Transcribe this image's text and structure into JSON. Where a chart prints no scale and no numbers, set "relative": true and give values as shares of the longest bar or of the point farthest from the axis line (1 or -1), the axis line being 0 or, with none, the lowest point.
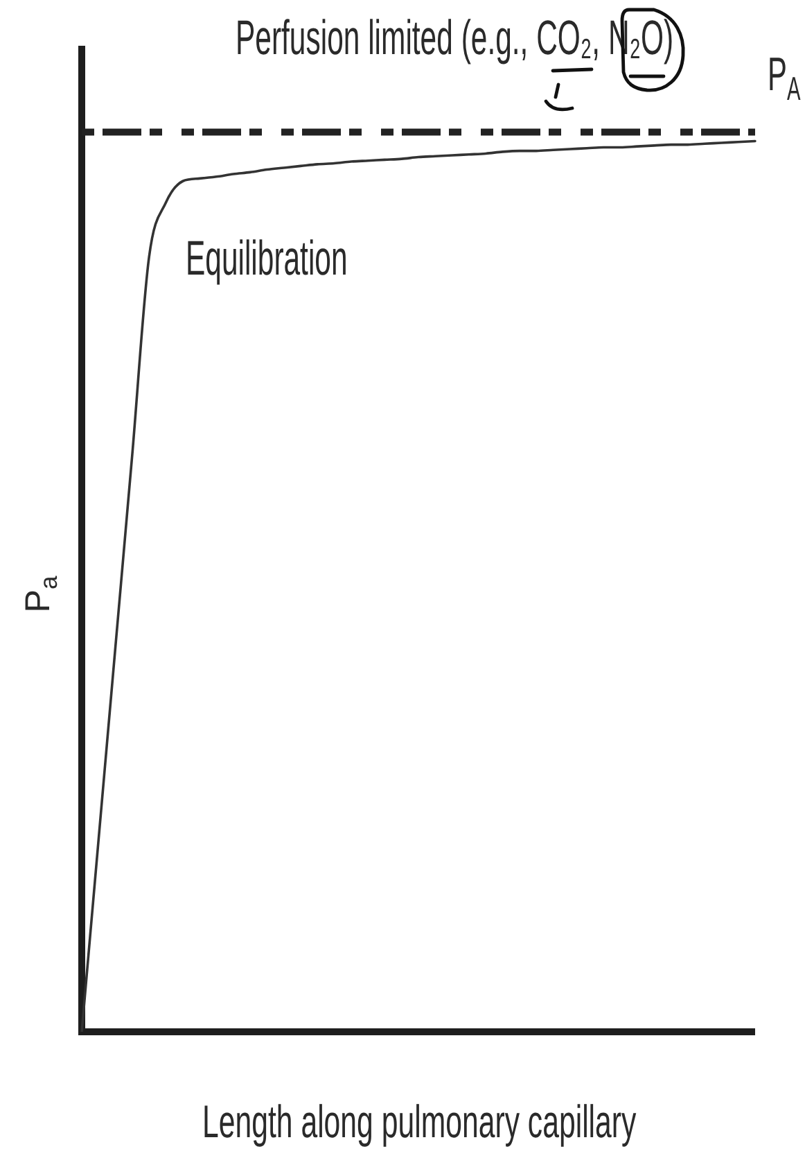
{
  "chart_data": {
    "type": "line",
    "title": "Perfusion limited (e.g., CO₂, N₂O)",
    "xlabel": "Length along pulmonary capillary",
    "ylabel": "P$_{a}$",
    "annotations": [
      "Equilibration"
    ],
    "relative": true,
    "marker": "none",
    "line_style": "solid",
    "categories": [
      null,
      null,
      null,
      null,
      null,
      null,
      null,
      null,
      null,
      null,
      null,
      null,
      null,
      null,
      null,
      null,
      null,
      null,
      null,
      null,
      null,
      null,
      null,
      null,
      null,
      null,
      null,
      null,
      null,
      null,
      null,
      null,
      null,
      null,
      null,
      null,
      null,
      null,
      null,
      null,
      null
    ],
    "series": [
      {
        "color": "#333333",
        "values": [
          0,
          0.216,
          0.432,
          0.648,
          0.87,
          0.931,
          0.955,
          0.958,
          0.96,
          0.963,
          0.965,
          0.968,
          0.97,
          0.972,
          0.974,
          0.975,
          0.977,
          0.978,
          0.979,
          0.98,
          0.982,
          0.983,
          0.984,
          0.985,
          0.986,
          0.988,
          0.989,
          0.989,
          0.99,
          0.991,
          0.992,
          0.993,
          0.993,
          0.994,
          0.995,
          0.996,
          0.996,
          0.997,
          0.998,
          0.999,
          1
        ]
      }
    ],
    "ref_lines": [
      {
        "axis": "y",
        "value": 1.01,
        "label": "P$_{A}$",
        "color": "#222222",
        "line_style": "dashed"
      }
    ]
  }
}
